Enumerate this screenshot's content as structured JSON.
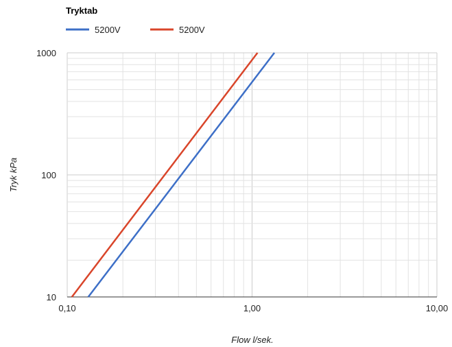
{
  "chart_data": {
    "type": "line",
    "title": "Tryktab",
    "xlabel": "Flow l/sek.",
    "ylabel": "Tryk kPa",
    "x_scale": "log",
    "y_scale": "log",
    "xlim": [
      0.1,
      10
    ],
    "ylim": [
      10,
      1000
    ],
    "x_ticks": [
      {
        "value": 0.1,
        "label": "0,10"
      },
      {
        "value": 1,
        "label": "1,00"
      },
      {
        "value": 10,
        "label": "10,00"
      }
    ],
    "y_ticks": [
      {
        "value": 10,
        "label": "10"
      },
      {
        "value": 100,
        "label": "100"
      },
      {
        "value": 1000,
        "label": "1000"
      }
    ],
    "grid": true,
    "legend_position": "top-left",
    "series": [
      {
        "name": "5200V",
        "color": "#3d6fc7",
        "x": [
          0.13,
          1.32
        ],
        "y": [
          10,
          1000
        ]
      },
      {
        "name": "5200V",
        "color": "#d9452a",
        "x": [
          0.106,
          1.07
        ],
        "y": [
          10,
          1000
        ]
      }
    ]
  }
}
